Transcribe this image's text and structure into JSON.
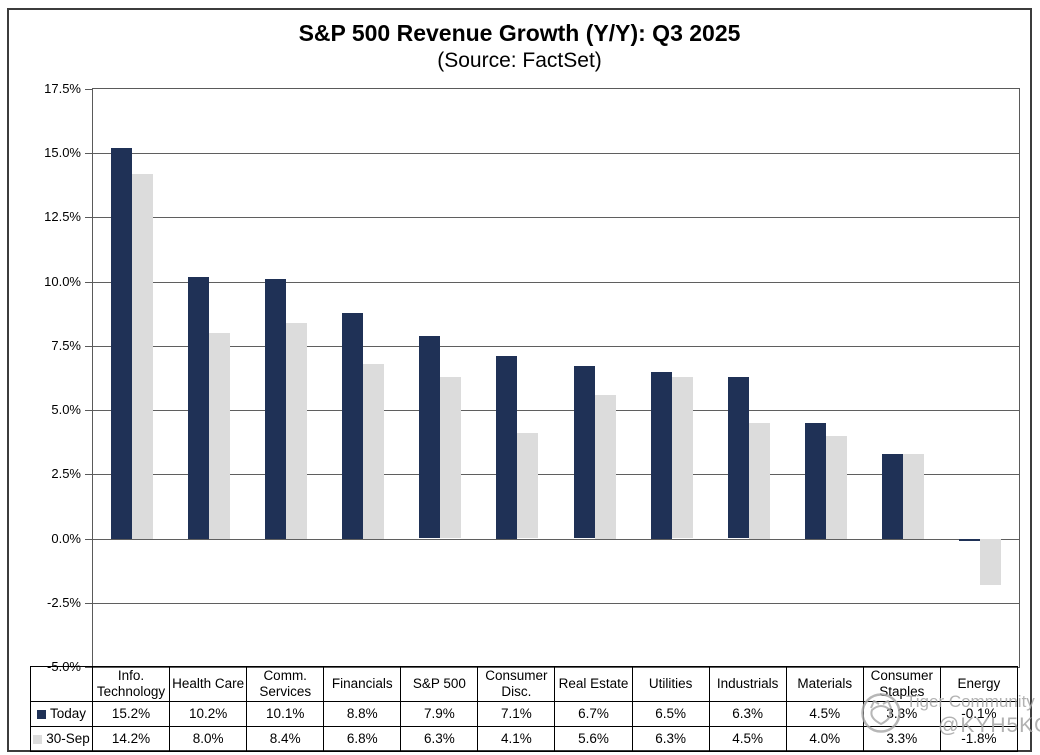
{
  "title": "S&P 500 Revenue Growth (Y/Y): Q3 2025",
  "subtitle": "(Source: FactSet)",
  "watermark": {
    "community": "Tiger Community",
    "handle": "@KYH5KO"
  },
  "chart_data": {
    "type": "bar",
    "title": "S&P 500 Revenue Growth (Y/Y): Q3 2025",
    "subtitle": "(Source: FactSet)",
    "categories": [
      "Info. Technology",
      "Health Care",
      "Comm. Services",
      "Financials",
      "S&P 500",
      "Consumer Disc.",
      "Real Estate",
      "Utilities",
      "Industrials",
      "Materials",
      "Consumer Staples",
      "Energy"
    ],
    "series": [
      {
        "name": "Today",
        "color": "#1f3156",
        "values": [
          15.2,
          10.2,
          10.1,
          8.8,
          7.9,
          7.1,
          6.7,
          6.5,
          6.3,
          4.5,
          3.3,
          -0.1
        ]
      },
      {
        "name": "30-Sep",
        "color": "#dcdcdc",
        "values": [
          14.2,
          8.0,
          8.4,
          6.8,
          6.3,
          4.1,
          5.6,
          6.3,
          4.5,
          4.0,
          3.3,
          -1.8
        ]
      }
    ],
    "value_suffix": "%",
    "ylim": [
      -5.0,
      17.5
    ],
    "ytick_step": 2.5,
    "ytick_labels": [
      "17.5%",
      "15.0%",
      "12.5%",
      "10.0%",
      "7.5%",
      "5.0%",
      "2.5%",
      "0.0%",
      "-2.5%",
      "-5.0%"
    ],
    "xlabel": "",
    "ylabel": "",
    "grid": true,
    "gridline_color": "#5f5f5f",
    "legend_position": "table-left"
  }
}
